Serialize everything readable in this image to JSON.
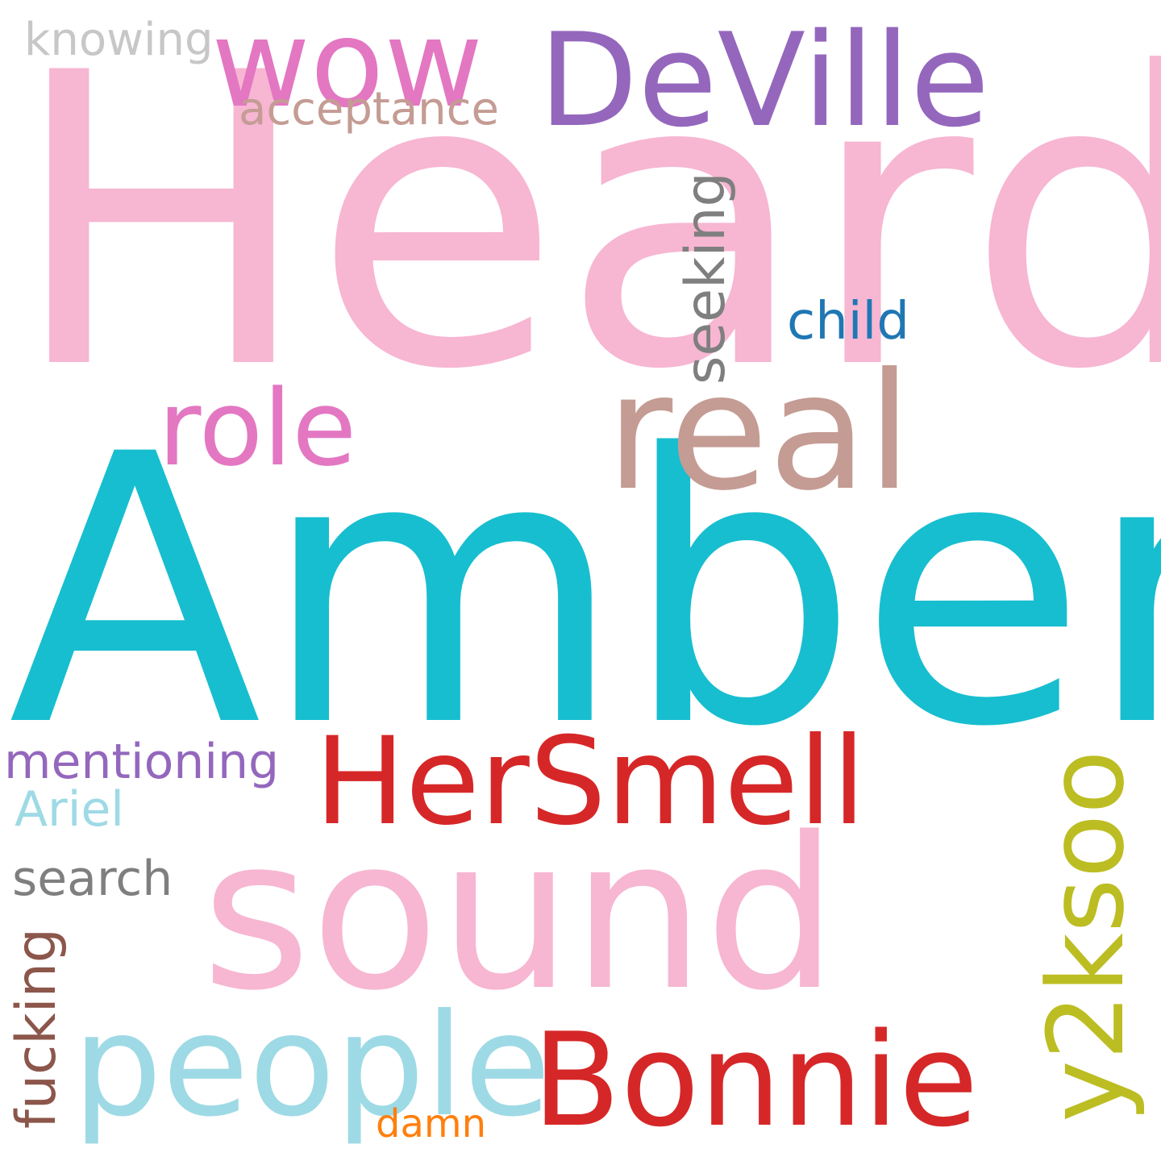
{
  "word_cloud": {
    "background": "#ffffff",
    "words": {
      "heard": {
        "text": "Heard",
        "color": "#f7b6d2"
      },
      "amber": {
        "text": "Amber",
        "color": "#17becf"
      },
      "sound": {
        "text": "sound",
        "color": "#f7b6d2"
      },
      "deville": {
        "text": "DeVille",
        "color": "#9467bd"
      },
      "real": {
        "text": "real",
        "color": "#c49c94"
      },
      "wow": {
        "text": "wow",
        "color": "#e377c2"
      },
      "role": {
        "text": "role",
        "color": "#e377c2"
      },
      "hersmell": {
        "text": "HerSmell",
        "color": "#d62728"
      },
      "people": {
        "text": "people",
        "color": "#9edae5"
      },
      "bonnie": {
        "text": "Bonnie",
        "color": "#d62728"
      },
      "y2ksoo": {
        "text": "y2ksoo",
        "color": "#bcbd22"
      },
      "seeking": {
        "text": "seeking",
        "color": "#7f7f7f"
      },
      "fucking": {
        "text": "fucking",
        "color": "#8c564b"
      },
      "child": {
        "text": "child",
        "color": "#1f77b4"
      },
      "acceptance": {
        "text": "acceptance",
        "color": "#c49c94"
      },
      "knowing": {
        "text": "knowing",
        "color": "#c7c7c7"
      },
      "mentioning": {
        "text": "mentioning",
        "color": "#9467bd"
      },
      "ariel": {
        "text": "Ariel",
        "color": "#9edae5"
      },
      "search": {
        "text": "search",
        "color": "#7f7f7f"
      },
      "damn": {
        "text": "damn",
        "color": "#ff7f0e"
      }
    }
  }
}
